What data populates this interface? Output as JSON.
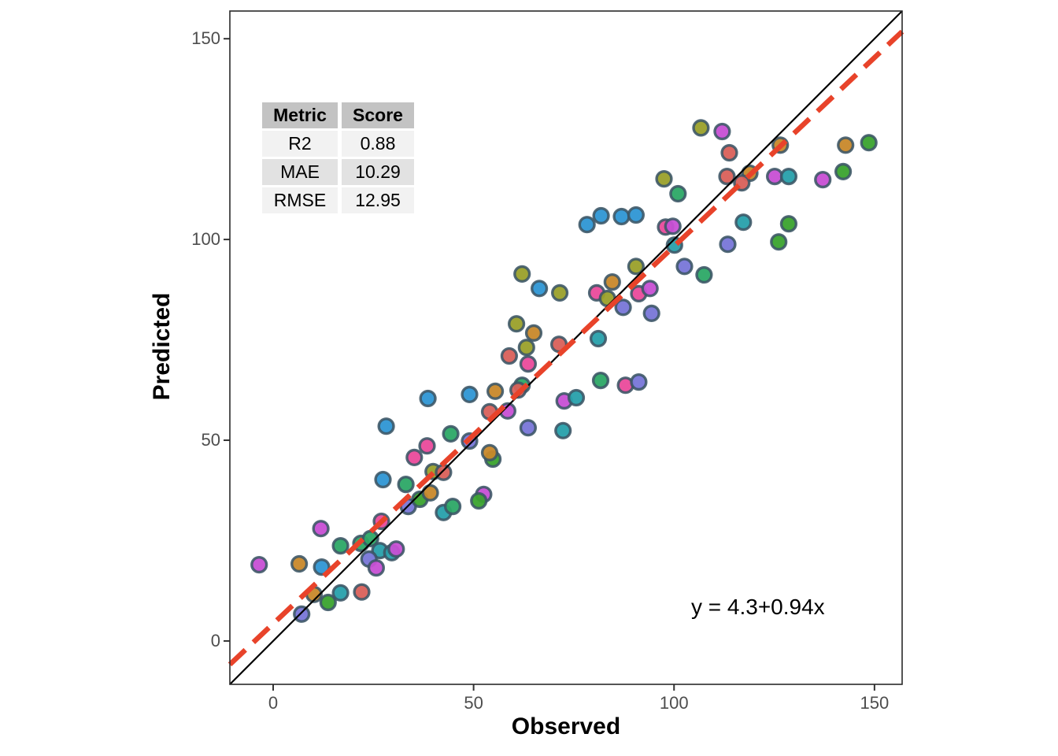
{
  "chart_data": {
    "type": "scatter",
    "xlabel": "Observed",
    "ylabel": "Predicted",
    "x_ticks": [
      0,
      50,
      100,
      150
    ],
    "y_ticks": [
      0,
      50,
      100,
      150
    ],
    "x_range": [
      -10.8,
      156.9
    ],
    "y_range": [
      -10.8,
      156.9
    ],
    "grid": false,
    "legend": "none",
    "equation_label": "y = 4.3+0.94x",
    "identity_line": {
      "color": "#000000",
      "width": 2.2,
      "style": "solid"
    },
    "regression_line": {
      "intercept": 4.3,
      "slope": 0.94,
      "color": "#e8432a",
      "width": 6.5,
      "style": "dashed",
      "dash": [
        27,
        14
      ]
    },
    "point_style": {
      "radius": 9.4,
      "stroke": "#3b5565",
      "stroke_width": 3.4,
      "stroke_opacity": 0.88,
      "fill_opacity": 0.95
    },
    "palette": {
      "red": "#d9605a",
      "orange": "#c8882a",
      "olive": "#9aa02a",
      "green": "#3aa32e",
      "emerald": "#2ca866",
      "teal": "#27a0ab",
      "blue": "#2e96d4",
      "purple": "#7876d8",
      "magenta": "#c74fd4",
      "pink": "#ea4a9b"
    },
    "points": [
      {
        "x": -3.5,
        "y": 19.0,
        "c": "magenta"
      },
      {
        "x": 6.5,
        "y": 19.2,
        "c": "orange"
      },
      {
        "x": 12.1,
        "y": 18.4,
        "c": "blue"
      },
      {
        "x": 11.9,
        "y": 28.0,
        "c": "magenta"
      },
      {
        "x": 16.8,
        "y": 23.7,
        "c": "emerald"
      },
      {
        "x": 10.2,
        "y": 11.6,
        "c": "orange"
      },
      {
        "x": 13.7,
        "y": 9.6,
        "c": "green"
      },
      {
        "x": 7.1,
        "y": 6.7,
        "c": "purple"
      },
      {
        "x": 16.8,
        "y": 12.0,
        "c": "teal"
      },
      {
        "x": 22.1,
        "y": 12.2,
        "c": "red"
      },
      {
        "x": 27.0,
        "y": 29.8,
        "c": "pink"
      },
      {
        "x": 21.9,
        "y": 24.3,
        "c": "emerald"
      },
      {
        "x": 24.3,
        "y": 25.5,
        "c": "emerald"
      },
      {
        "x": 26.6,
        "y": 22.5,
        "c": "teal"
      },
      {
        "x": 29.6,
        "y": 22.0,
        "c": "teal"
      },
      {
        "x": 30.7,
        "y": 22.9,
        "c": "magenta"
      },
      {
        "x": 23.9,
        "y": 20.4,
        "c": "purple"
      },
      {
        "x": 25.7,
        "y": 18.2,
        "c": "magenta"
      },
      {
        "x": 33.7,
        "y": 33.5,
        "c": "purple"
      },
      {
        "x": 36.6,
        "y": 35.3,
        "c": "green"
      },
      {
        "x": 39.2,
        "y": 36.9,
        "c": "orange"
      },
      {
        "x": 42.5,
        "y": 32.0,
        "c": "teal"
      },
      {
        "x": 44.8,
        "y": 33.5,
        "c": "emerald"
      },
      {
        "x": 28.2,
        "y": 53.5,
        "c": "blue"
      },
      {
        "x": 38.6,
        "y": 60.4,
        "c": "blue"
      },
      {
        "x": 49.0,
        "y": 61.4,
        "c": "blue"
      },
      {
        "x": 55.4,
        "y": 62.2,
        "c": "orange"
      },
      {
        "x": 62.1,
        "y": 63.7,
        "c": "emerald"
      },
      {
        "x": 61.1,
        "y": 62.5,
        "c": "red"
      },
      {
        "x": 54.0,
        "y": 57.1,
        "c": "red"
      },
      {
        "x": 58.5,
        "y": 57.3,
        "c": "magenta"
      },
      {
        "x": 44.3,
        "y": 51.6,
        "c": "emerald"
      },
      {
        "x": 49.0,
        "y": 49.8,
        "c": "purple"
      },
      {
        "x": 38.4,
        "y": 48.6,
        "c": "pink"
      },
      {
        "x": 35.2,
        "y": 45.7,
        "c": "pink"
      },
      {
        "x": 27.4,
        "y": 40.2,
        "c": "blue"
      },
      {
        "x": 33.1,
        "y": 39.0,
        "c": "emerald"
      },
      {
        "x": 39.9,
        "y": 42.2,
        "c": "olive"
      },
      {
        "x": 42.5,
        "y": 42.0,
        "c": "red"
      },
      {
        "x": 52.5,
        "y": 36.5,
        "c": "magenta"
      },
      {
        "x": 51.3,
        "y": 34.9,
        "c": "green"
      },
      {
        "x": 54.8,
        "y": 45.3,
        "c": "green"
      },
      {
        "x": 54.0,
        "y": 46.9,
        "c": "orange"
      },
      {
        "x": 63.6,
        "y": 53.1,
        "c": "purple"
      },
      {
        "x": 72.3,
        "y": 52.4,
        "c": "teal"
      },
      {
        "x": 72.6,
        "y": 59.8,
        "c": "magenta"
      },
      {
        "x": 75.6,
        "y": 60.6,
        "c": "teal"
      },
      {
        "x": 81.7,
        "y": 64.9,
        "c": "emerald"
      },
      {
        "x": 87.9,
        "y": 63.7,
        "c": "pink"
      },
      {
        "x": 91.2,
        "y": 64.5,
        "c": "purple"
      },
      {
        "x": 58.9,
        "y": 71.0,
        "c": "red"
      },
      {
        "x": 63.6,
        "y": 69.0,
        "c": "pink"
      },
      {
        "x": 62.1,
        "y": 91.4,
        "c": "olive"
      },
      {
        "x": 66.4,
        "y": 87.8,
        "c": "blue"
      },
      {
        "x": 71.5,
        "y": 86.7,
        "c": "olive"
      },
      {
        "x": 60.7,
        "y": 79.0,
        "c": "olive"
      },
      {
        "x": 65.0,
        "y": 76.7,
        "c": "orange"
      },
      {
        "x": 63.2,
        "y": 73.1,
        "c": "olive"
      },
      {
        "x": 71.3,
        "y": 73.9,
        "c": "red"
      },
      {
        "x": 78.3,
        "y": 103.7,
        "c": "blue"
      },
      {
        "x": 81.8,
        "y": 105.9,
        "c": "blue"
      },
      {
        "x": 86.9,
        "y": 105.7,
        "c": "blue"
      },
      {
        "x": 90.5,
        "y": 106.1,
        "c": "blue"
      },
      {
        "x": 97.9,
        "y": 103.1,
        "c": "pink"
      },
      {
        "x": 99.7,
        "y": 103.3,
        "c": "magenta"
      },
      {
        "x": 100.1,
        "y": 98.6,
        "c": "teal"
      },
      {
        "x": 113.4,
        "y": 98.8,
        "c": "purple"
      },
      {
        "x": 102.6,
        "y": 93.3,
        "c": "purple"
      },
      {
        "x": 107.5,
        "y": 91.2,
        "c": "emerald"
      },
      {
        "x": 90.5,
        "y": 93.3,
        "c": "olive"
      },
      {
        "x": 84.6,
        "y": 89.4,
        "c": "orange"
      },
      {
        "x": 80.7,
        "y": 86.7,
        "c": "pink"
      },
      {
        "x": 83.4,
        "y": 85.3,
        "c": "olive"
      },
      {
        "x": 91.2,
        "y": 86.5,
        "c": "pink"
      },
      {
        "x": 94.0,
        "y": 87.8,
        "c": "magenta"
      },
      {
        "x": 87.3,
        "y": 83.1,
        "c": "purple"
      },
      {
        "x": 94.4,
        "y": 81.6,
        "c": "purple"
      },
      {
        "x": 81.1,
        "y": 75.3,
        "c": "teal"
      },
      {
        "x": 106.7,
        "y": 127.8,
        "c": "olive"
      },
      {
        "x": 112.0,
        "y": 126.9,
        "c": "magenta"
      },
      {
        "x": 113.8,
        "y": 121.6,
        "c": "red"
      },
      {
        "x": 126.5,
        "y": 123.5,
        "c": "orange"
      },
      {
        "x": 97.5,
        "y": 115.1,
        "c": "olive"
      },
      {
        "x": 101.0,
        "y": 111.4,
        "c": "emerald"
      },
      {
        "x": 113.2,
        "y": 115.7,
        "c": "red"
      },
      {
        "x": 118.9,
        "y": 116.5,
        "c": "orange"
      },
      {
        "x": 116.9,
        "y": 114.1,
        "c": "red"
      },
      {
        "x": 125.1,
        "y": 115.7,
        "c": "magenta"
      },
      {
        "x": 128.6,
        "y": 115.7,
        "c": "teal"
      },
      {
        "x": 137.1,
        "y": 114.9,
        "c": "magenta"
      },
      {
        "x": 142.2,
        "y": 116.9,
        "c": "green"
      },
      {
        "x": 142.8,
        "y": 123.5,
        "c": "orange"
      },
      {
        "x": 148.6,
        "y": 124.1,
        "c": "green"
      },
      {
        "x": 128.6,
        "y": 103.9,
        "c": "green"
      },
      {
        "x": 126.1,
        "y": 99.4,
        "c": "green"
      },
      {
        "x": 117.3,
        "y": 104.3,
        "c": "teal"
      }
    ]
  },
  "metrics_table": {
    "headers": [
      "Metric",
      "Score"
    ],
    "rows": [
      [
        "R2",
        "0.88"
      ],
      [
        "MAE",
        "10.29"
      ],
      [
        "RMSE",
        "12.95"
      ]
    ]
  }
}
